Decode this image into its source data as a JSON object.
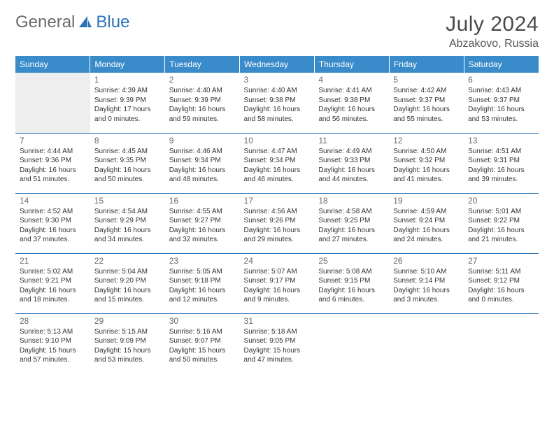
{
  "logo": {
    "text1": "General",
    "text2": "Blue"
  },
  "title": "July 2024",
  "location": "Abzakovo, Russia",
  "colors": {
    "header_bg": "#3a8bc9",
    "header_text": "#ffffff",
    "border": "#2d72b8",
    "empty_bg": "#eeeeee",
    "logo_gray": "#6b6b6b",
    "logo_blue": "#2d72b8"
  },
  "weekdays": [
    "Sunday",
    "Monday",
    "Tuesday",
    "Wednesday",
    "Thursday",
    "Friday",
    "Saturday"
  ],
  "weeks": [
    [
      null,
      {
        "n": "1",
        "sr": "4:39 AM",
        "ss": "9:39 PM",
        "dl": "17 hours and 0 minutes."
      },
      {
        "n": "2",
        "sr": "4:40 AM",
        "ss": "9:39 PM",
        "dl": "16 hours and 59 minutes."
      },
      {
        "n": "3",
        "sr": "4:40 AM",
        "ss": "9:38 PM",
        "dl": "16 hours and 58 minutes."
      },
      {
        "n": "4",
        "sr": "4:41 AM",
        "ss": "9:38 PM",
        "dl": "16 hours and 56 minutes."
      },
      {
        "n": "5",
        "sr": "4:42 AM",
        "ss": "9:37 PM",
        "dl": "16 hours and 55 minutes."
      },
      {
        "n": "6",
        "sr": "4:43 AM",
        "ss": "9:37 PM",
        "dl": "16 hours and 53 minutes."
      }
    ],
    [
      {
        "n": "7",
        "sr": "4:44 AM",
        "ss": "9:36 PM",
        "dl": "16 hours and 51 minutes."
      },
      {
        "n": "8",
        "sr": "4:45 AM",
        "ss": "9:35 PM",
        "dl": "16 hours and 50 minutes."
      },
      {
        "n": "9",
        "sr": "4:46 AM",
        "ss": "9:34 PM",
        "dl": "16 hours and 48 minutes."
      },
      {
        "n": "10",
        "sr": "4:47 AM",
        "ss": "9:34 PM",
        "dl": "16 hours and 46 minutes."
      },
      {
        "n": "11",
        "sr": "4:49 AM",
        "ss": "9:33 PM",
        "dl": "16 hours and 44 minutes."
      },
      {
        "n": "12",
        "sr": "4:50 AM",
        "ss": "9:32 PM",
        "dl": "16 hours and 41 minutes."
      },
      {
        "n": "13",
        "sr": "4:51 AM",
        "ss": "9:31 PM",
        "dl": "16 hours and 39 minutes."
      }
    ],
    [
      {
        "n": "14",
        "sr": "4:52 AM",
        "ss": "9:30 PM",
        "dl": "16 hours and 37 minutes."
      },
      {
        "n": "15",
        "sr": "4:54 AM",
        "ss": "9:29 PM",
        "dl": "16 hours and 34 minutes."
      },
      {
        "n": "16",
        "sr": "4:55 AM",
        "ss": "9:27 PM",
        "dl": "16 hours and 32 minutes."
      },
      {
        "n": "17",
        "sr": "4:56 AM",
        "ss": "9:26 PM",
        "dl": "16 hours and 29 minutes."
      },
      {
        "n": "18",
        "sr": "4:58 AM",
        "ss": "9:25 PM",
        "dl": "16 hours and 27 minutes."
      },
      {
        "n": "19",
        "sr": "4:59 AM",
        "ss": "9:24 PM",
        "dl": "16 hours and 24 minutes."
      },
      {
        "n": "20",
        "sr": "5:01 AM",
        "ss": "9:22 PM",
        "dl": "16 hours and 21 minutes."
      }
    ],
    [
      {
        "n": "21",
        "sr": "5:02 AM",
        "ss": "9:21 PM",
        "dl": "16 hours and 18 minutes."
      },
      {
        "n": "22",
        "sr": "5:04 AM",
        "ss": "9:20 PM",
        "dl": "16 hours and 15 minutes."
      },
      {
        "n": "23",
        "sr": "5:05 AM",
        "ss": "9:18 PM",
        "dl": "16 hours and 12 minutes."
      },
      {
        "n": "24",
        "sr": "5:07 AM",
        "ss": "9:17 PM",
        "dl": "16 hours and 9 minutes."
      },
      {
        "n": "25",
        "sr": "5:08 AM",
        "ss": "9:15 PM",
        "dl": "16 hours and 6 minutes."
      },
      {
        "n": "26",
        "sr": "5:10 AM",
        "ss": "9:14 PM",
        "dl": "16 hours and 3 minutes."
      },
      {
        "n": "27",
        "sr": "5:11 AM",
        "ss": "9:12 PM",
        "dl": "16 hours and 0 minutes."
      }
    ],
    [
      {
        "n": "28",
        "sr": "5:13 AM",
        "ss": "9:10 PM",
        "dl": "15 hours and 57 minutes."
      },
      {
        "n": "29",
        "sr": "5:15 AM",
        "ss": "9:09 PM",
        "dl": "15 hours and 53 minutes."
      },
      {
        "n": "30",
        "sr": "5:16 AM",
        "ss": "9:07 PM",
        "dl": "15 hours and 50 minutes."
      },
      {
        "n": "31",
        "sr": "5:18 AM",
        "ss": "9:05 PM",
        "dl": "15 hours and 47 minutes."
      },
      null,
      null,
      null
    ]
  ],
  "labels": {
    "sunrise": "Sunrise:",
    "sunset": "Sunset:",
    "daylight": "Daylight:"
  }
}
